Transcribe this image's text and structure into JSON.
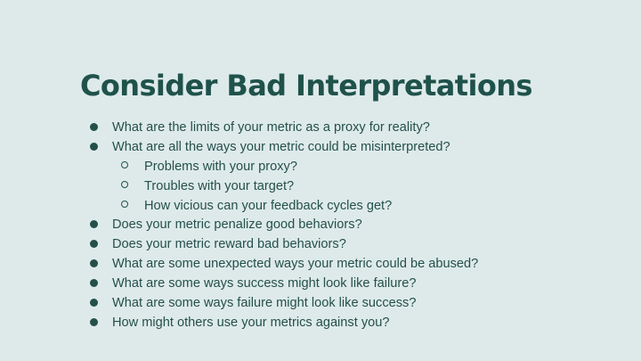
{
  "slide": {
    "title": "Consider Bad Interpretations",
    "bullets": [
      "What are the limits of your metric as a proxy for reality?",
      "What are all the ways your metric could be misinterpreted?",
      "Problems with your proxy?",
      "Troubles with your target?",
      "How vicious can your feedback cycles get?",
      "Does your metric penalize good behaviors?",
      "Does your metric reward bad behaviors?",
      "What are some unexpected ways your metric could be abused?",
      "What are some ways success might look like failure?",
      "What are some ways failure might look like success?",
      "How might others use your metrics against you?"
    ]
  },
  "colors": {
    "background": "#deeaea",
    "title": "#1f524b",
    "text": "#24504b"
  }
}
